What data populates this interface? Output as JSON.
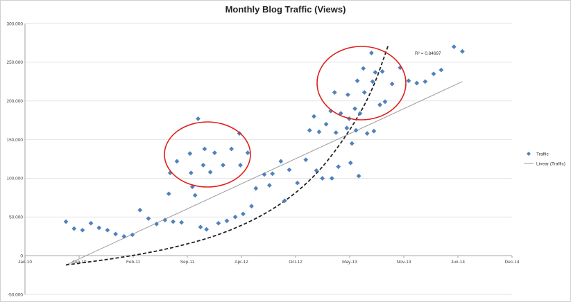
{
  "chart_data": {
    "type": "scatter",
    "title": "Monthly Blog Traffic (Views)",
    "xlabel": "",
    "ylabel": "",
    "x_ticks": [
      "Jan-10",
      "Aug-10",
      "Feb-11",
      "Sep-11",
      "Apr-12",
      "Oct-12",
      "May-13",
      "Nov-13",
      "Jun-14",
      "Dec-14"
    ],
    "y_ticks": [
      "-50,000",
      "0",
      "50,000",
      "100,000",
      "150,000",
      "200,000",
      "250,000",
      "300,000"
    ],
    "ylim": [
      -50000,
      300000
    ],
    "x_domain": [
      "2010-01-01",
      "2014-12-01"
    ],
    "legend_position": "right",
    "grid": "horizontal",
    "series": [
      {
        "name": "Traffic",
        "kind": "scatter",
        "color": "#4f81bd",
        "points": [
          [
            "2010-06-01",
            44000
          ],
          [
            "2010-07-01",
            35000
          ],
          [
            "2010-08-01",
            33000
          ],
          [
            "2010-09-01",
            42000
          ],
          [
            "2010-10-01",
            36000
          ],
          [
            "2010-11-01",
            33000
          ],
          [
            "2010-12-01",
            28000
          ],
          [
            "2011-01-01",
            25000
          ],
          [
            "2011-02-01",
            27000
          ],
          [
            "2011-03-01",
            59000
          ],
          [
            "2011-04-01",
            48000
          ],
          [
            "2011-05-01",
            41000
          ],
          [
            "2011-06-01",
            46000
          ],
          [
            "2011-06-15",
            80000
          ],
          [
            "2011-06-20",
            107000
          ],
          [
            "2011-07-01",
            44000
          ],
          [
            "2011-07-15",
            122000
          ],
          [
            "2011-08-01",
            43000
          ],
          [
            "2011-09-01",
            132000
          ],
          [
            "2011-09-05",
            107000
          ],
          [
            "2011-09-10",
            89000
          ],
          [
            "2011-09-20",
            78000
          ],
          [
            "2011-10-01",
            177000
          ],
          [
            "2011-10-10",
            37000
          ],
          [
            "2011-10-20",
            117000
          ],
          [
            "2011-10-25",
            138000
          ],
          [
            "2011-11-01",
            34000
          ],
          [
            "2011-11-15",
            108000
          ],
          [
            "2011-12-01",
            133000
          ],
          [
            "2011-12-15",
            42000
          ],
          [
            "2012-01-01",
            117000
          ],
          [
            "2012-01-15",
            45000
          ],
          [
            "2012-02-01",
            138000
          ],
          [
            "2012-02-15",
            50000
          ],
          [
            "2012-03-01",
            158000
          ],
          [
            "2012-03-05",
            117000
          ],
          [
            "2012-03-15",
            54000
          ],
          [
            "2012-04-01",
            133000
          ],
          [
            "2012-04-15",
            64000
          ],
          [
            "2012-05-01",
            87000
          ],
          [
            "2012-06-01",
            105000
          ],
          [
            "2012-06-20",
            91000
          ],
          [
            "2012-07-01",
            106000
          ],
          [
            "2012-08-01",
            122000
          ],
          [
            "2012-08-15",
            71000
          ],
          [
            "2012-09-01",
            111000
          ],
          [
            "2012-10-01",
            94000
          ],
          [
            "2012-11-01",
            124000
          ],
          [
            "2012-11-15",
            162000
          ],
          [
            "2012-12-01",
            180000
          ],
          [
            "2012-12-10",
            110000
          ],
          [
            "2012-12-20",
            160000
          ],
          [
            "2013-01-01",
            100000
          ],
          [
            "2013-01-15",
            170000
          ],
          [
            "2013-02-01",
            187000
          ],
          [
            "2013-02-05",
            100000
          ],
          [
            "2013-02-15",
            211000
          ],
          [
            "2013-02-20",
            159000
          ],
          [
            "2013-03-01",
            115000
          ],
          [
            "2013-03-10",
            184000
          ],
          [
            "2013-04-01",
            165000
          ],
          [
            "2013-04-05",
            208000
          ],
          [
            "2013-04-10",
            177000
          ],
          [
            "2013-04-15",
            120000
          ],
          [
            "2013-04-20",
            145000
          ],
          [
            "2013-05-01",
            190000
          ],
          [
            "2013-05-05",
            162000
          ],
          [
            "2013-05-10",
            226000
          ],
          [
            "2013-05-15",
            103000
          ],
          [
            "2013-05-20",
            184000
          ],
          [
            "2013-06-01",
            242000
          ],
          [
            "2013-06-05",
            211000
          ],
          [
            "2013-06-15",
            158000
          ],
          [
            "2013-07-01",
            262000
          ],
          [
            "2013-07-05",
            225000
          ],
          [
            "2013-07-10",
            161000
          ],
          [
            "2013-07-15",
            237000
          ],
          [
            "2013-08-01",
            195000
          ],
          [
            "2013-08-10",
            238000
          ],
          [
            "2013-08-20",
            199000
          ],
          [
            "2013-09-15",
            222000
          ],
          [
            "2013-10-15",
            243000
          ],
          [
            "2013-11-15",
            226000
          ],
          [
            "2013-12-15",
            223000
          ],
          [
            "2014-01-15",
            225000
          ],
          [
            "2014-02-15",
            235000
          ],
          [
            "2014-03-15",
            240000
          ],
          [
            "2014-05-01",
            270000
          ],
          [
            "2014-06-01",
            264000
          ]
        ]
      },
      {
        "name": "Linear (Traffic)",
        "kind": "trendline",
        "color": "#9a9a9a",
        "points": [
          [
            "2010-06-01",
            -12000
          ],
          [
            "2014-06-01",
            225000
          ]
        ]
      },
      {
        "name": "",
        "kind": "curve",
        "color": "#222222",
        "points": [
          [
            "2010-06-01",
            -12000
          ],
          [
            "2011-01-01",
            -2000
          ],
          [
            "2011-07-01",
            10000
          ],
          [
            "2012-01-01",
            28000
          ],
          [
            "2012-07-01",
            58000
          ],
          [
            "2012-12-01",
            100000
          ],
          [
            "2013-04-01",
            155000
          ],
          [
            "2013-07-01",
            210000
          ],
          [
            "2013-09-01",
            272000
          ]
        ]
      }
    ],
    "annotations": {
      "r_squared": "R² = 0.84697",
      "highlight_color": "#e0201c"
    }
  }
}
